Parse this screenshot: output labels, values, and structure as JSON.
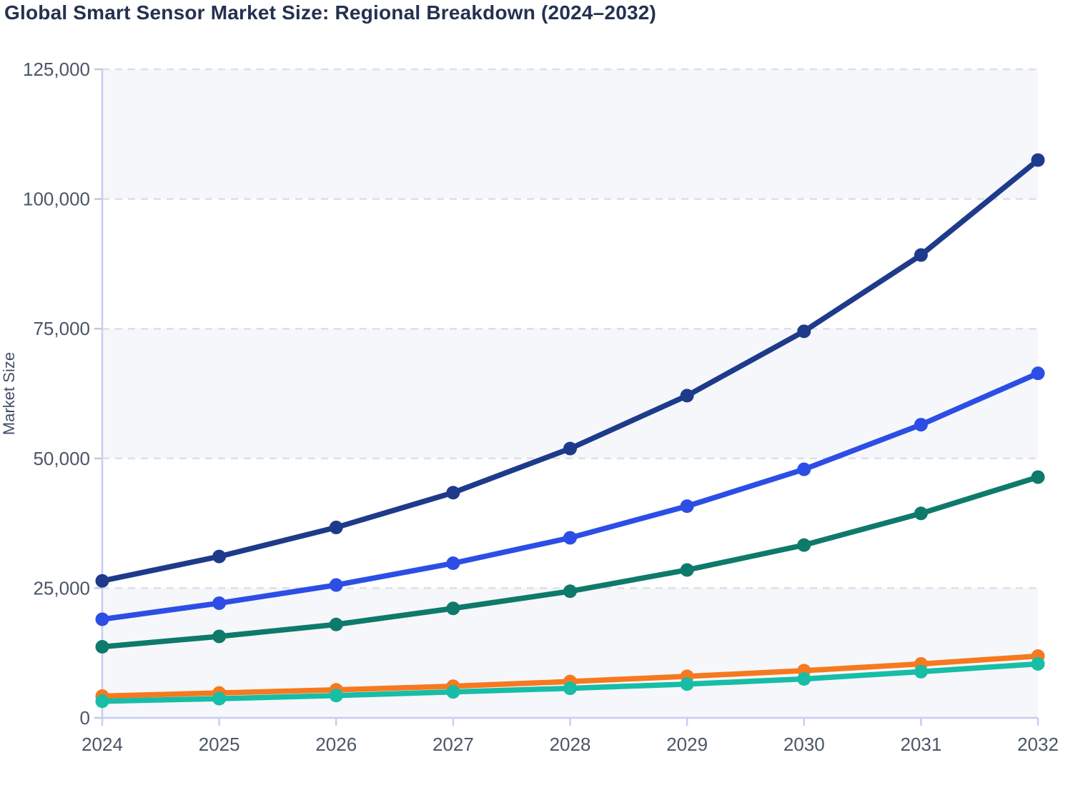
{
  "chart": {
    "title": "Global Smart Sensor Market Size: Regional Breakdown (2024–2032)",
    "ylabel": "Market Size"
  },
  "chart_data": {
    "type": "line",
    "title": "Global Smart Sensor Market Size: Regional Breakdown (2024–2032)",
    "xlabel": "",
    "ylabel": "Market Size",
    "x": [
      2024,
      2025,
      2026,
      2027,
      2028,
      2029,
      2030,
      2031,
      2032
    ],
    "series": [
      {
        "name": "navy",
        "color": "#1e3a8a",
        "values": [
          26400,
          31100,
          36700,
          43400,
          51900,
          62100,
          74500,
          89200,
          107500
        ]
      },
      {
        "name": "blue",
        "color": "#2c4ee6",
        "values": [
          19000,
          22100,
          25600,
          29800,
          34700,
          40800,
          47900,
          56500,
          66400
        ]
      },
      {
        "name": "green",
        "color": "#0e7a6b",
        "values": [
          13700,
          15700,
          18000,
          21100,
          24400,
          28500,
          33300,
          39400,
          46400
        ]
      },
      {
        "name": "orange",
        "color": "#f6791f",
        "values": [
          4200,
          4800,
          5400,
          6100,
          7000,
          8000,
          9100,
          10400,
          11900
        ]
      },
      {
        "name": "teal",
        "color": "#17bda7",
        "values": [
          3200,
          3700,
          4300,
          5000,
          5700,
          6500,
          7500,
          8900,
          10400
        ]
      }
    ],
    "ylim": [
      0,
      125000
    ],
    "yticks": [
      0,
      25000,
      50000,
      75000,
      100000,
      125000
    ],
    "ytick_labels": [
      "0",
      "25,000",
      "50,000",
      "75,000",
      "100,000",
      "125,000"
    ],
    "grid": "horizontal-dashed",
    "legend": "none",
    "plot_bands": "alternating gray/white per 25,000"
  },
  "style": {
    "title_color": "#243150",
    "tick_label_color": "#4a5668",
    "axis_title_color": "#414e66",
    "axis_line_color": "#c6cdf2",
    "grid_color": "#dce0e8",
    "y_tick_color": "#c2c9d6",
    "band_fill": "#f5f7fa",
    "background": "#ffffff"
  }
}
